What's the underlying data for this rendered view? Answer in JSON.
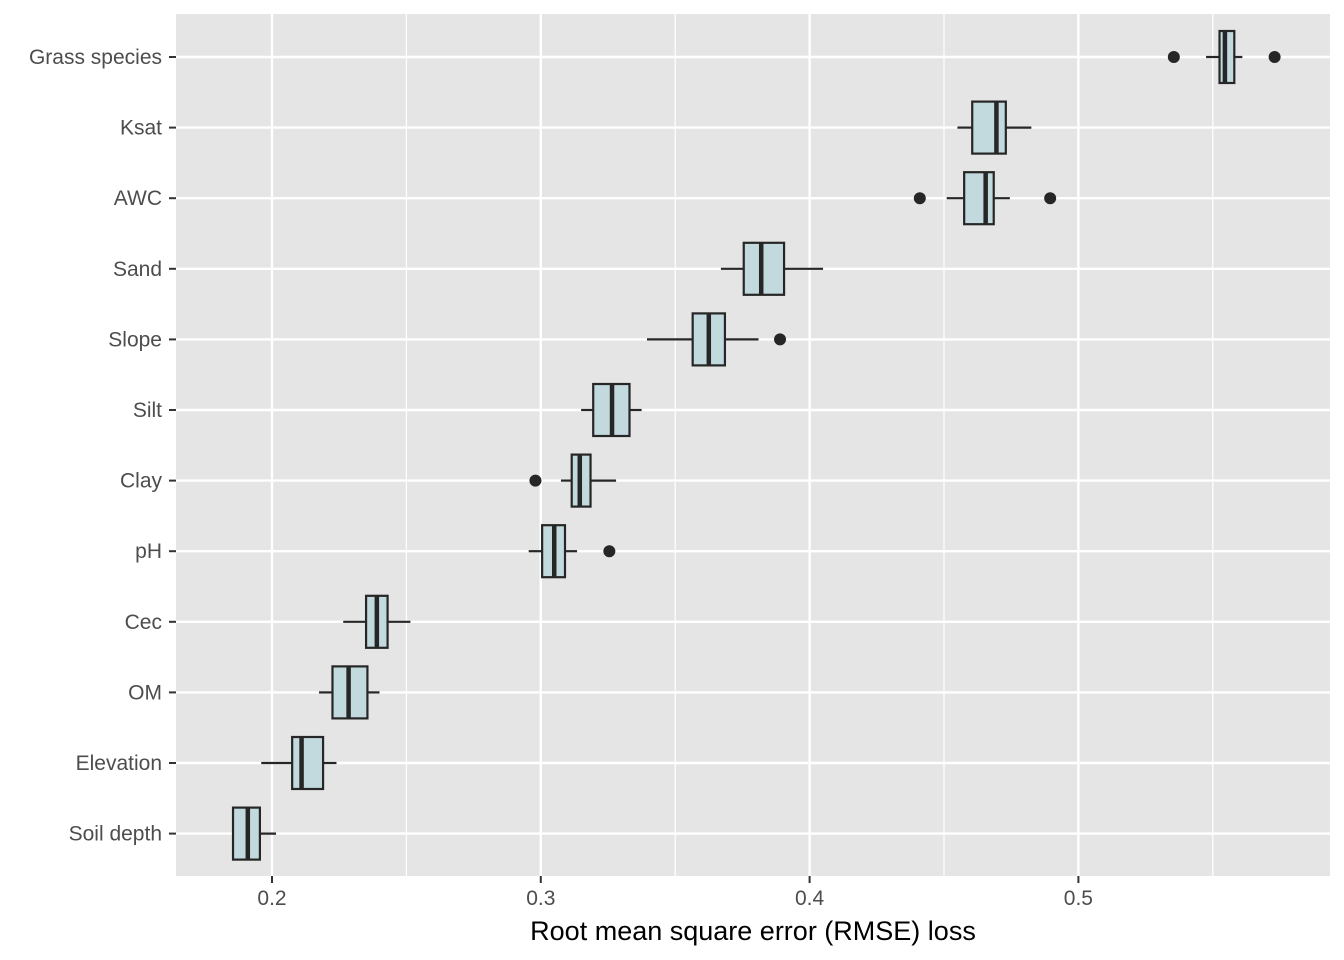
{
  "chart_data": {
    "type": "boxplot",
    "orientation": "horizontal",
    "title": "",
    "xlabel": "Root mean square error (RMSE) loss",
    "ylabel": "",
    "xlim": [
      0.165,
      0.59
    ],
    "xticks": [
      0.2,
      0.3,
      0.4,
      0.5
    ],
    "xtick_labels": [
      "0.2",
      "0.3",
      "0.4",
      "0.5"
    ],
    "grid": true,
    "legend": "none",
    "colors": {
      "panel_background": "#e5e5e5",
      "grid": "#ffffff",
      "box_fill": "#c2d9de",
      "box_stroke": "#262626",
      "outlier": "#262626"
    },
    "categories": [
      "Grass species",
      "Ksat",
      "AWC",
      "Sand",
      "Slope",
      "Silt",
      "Clay",
      "pH",
      "Cec",
      "OM",
      "Elevation",
      "Soil depth"
    ],
    "boxes": [
      {
        "category": "Grass species",
        "whisker_low": 0.5475,
        "q1": 0.5525,
        "median": 0.5545,
        "q3": 0.558,
        "whisker_high": 0.561,
        "outliers": [
          0.5355,
          0.573
        ]
      },
      {
        "category": "Ksat",
        "whisker_low": 0.455,
        "q1": 0.4605,
        "median": 0.4695,
        "q3": 0.473,
        "whisker_high": 0.4825,
        "outliers": []
      },
      {
        "category": "AWC",
        "whisker_low": 0.451,
        "q1": 0.4575,
        "median": 0.4655,
        "q3": 0.4685,
        "whisker_high": 0.4745,
        "outliers": [
          0.441,
          0.4895
        ]
      },
      {
        "category": "Sand",
        "whisker_low": 0.367,
        "q1": 0.3755,
        "median": 0.382,
        "q3": 0.3905,
        "whisker_high": 0.405,
        "outliers": []
      },
      {
        "category": "Slope",
        "whisker_low": 0.3395,
        "q1": 0.3565,
        "median": 0.3625,
        "q3": 0.3685,
        "whisker_high": 0.381,
        "outliers": [
          0.389
        ]
      },
      {
        "category": "Silt",
        "whisker_low": 0.315,
        "q1": 0.3195,
        "median": 0.3265,
        "q3": 0.333,
        "whisker_high": 0.3375,
        "outliers": []
      },
      {
        "category": "Clay",
        "whisker_low": 0.3075,
        "q1": 0.3115,
        "median": 0.3145,
        "q3": 0.3185,
        "whisker_high": 0.328,
        "outliers": [
          0.298
        ]
      },
      {
        "category": "pH",
        "whisker_low": 0.2955,
        "q1": 0.3005,
        "median": 0.305,
        "q3": 0.309,
        "whisker_high": 0.3135,
        "outliers": [
          0.3255
        ]
      },
      {
        "category": "Cec",
        "whisker_low": 0.2265,
        "q1": 0.235,
        "median": 0.239,
        "q3": 0.243,
        "whisker_high": 0.2515,
        "outliers": []
      },
      {
        "category": "OM",
        "whisker_low": 0.2175,
        "q1": 0.2225,
        "median": 0.2285,
        "q3": 0.2355,
        "whisker_high": 0.24,
        "outliers": []
      },
      {
        "category": "Elevation",
        "whisker_low": 0.196,
        "q1": 0.2075,
        "median": 0.211,
        "q3": 0.219,
        "whisker_high": 0.224,
        "outliers": []
      },
      {
        "category": "Soil depth",
        "whisker_low": 0.1855,
        "q1": 0.1855,
        "median": 0.191,
        "q3": 0.1955,
        "whisker_high": 0.2015,
        "outliers": []
      }
    ]
  }
}
